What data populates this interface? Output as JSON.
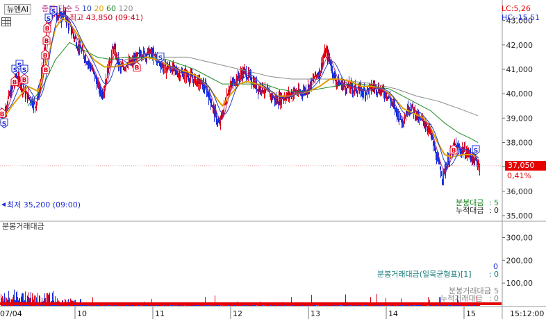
{
  "header": {
    "tab_label": "뉴엔AI",
    "legend_prefix": "종가 단순",
    "ma_periods": [
      "5",
      "10",
      "20",
      "60",
      "120"
    ],
    "max_label": "최고 43,850 (09:41)",
    "min_label": "최저 35,200 (09:00)",
    "lc": "LC:5,26",
    "hc": "HC:-15,51"
  },
  "current": {
    "price": "37,050",
    "change": "0,41%"
  },
  "price_panel": {
    "flow_label": "분봉대금",
    "flow_value": "5",
    "cum_label": "누적대금",
    "cum_value": "0"
  },
  "volume_panel": {
    "title": "분봉거래대금",
    "legend1_label": "분봉거래대금(일목균형표)[1]",
    "legend1_v1": "0",
    "legend1_v2": "0",
    "legend2_label": "분봉거래대금",
    "legend2_value": "5",
    "legend3_label": "누적거래대금",
    "legend3_value": "0"
  },
  "x_axis": {
    "first": "07/04",
    "last_time": "15:12:00"
  },
  "colors": {
    "up": "#e0001b",
    "down": "#1c2bd6",
    "ma5": "#b0367a",
    "ma10": "#2340c8",
    "ma20": "#e1a000",
    "ma60": "#218a28",
    "ma120": "#8c8c8c",
    "accent_red": "#e60000"
  },
  "chart_data": {
    "type": "candlestick",
    "price_axis": {
      "ticks": [
        "43,000",
        "42,000",
        "41,000",
        "40,000",
        "39,000",
        "38,000",
        "37,000",
        "36,000",
        "35,000"
      ],
      "ylim": [
        34800,
        43700
      ]
    },
    "volume_axis": {
      "ticks": [
        "300,00",
        "200,00",
        "100,00"
      ],
      "ylim": [
        0,
        350
      ]
    },
    "days": [
      "10",
      "11",
      "12",
      "13",
      "14",
      "15"
    ],
    "price_path": [
      [
        0,
        39300
      ],
      [
        5,
        39100
      ],
      [
        10,
        39700
      ],
      [
        17,
        40200
      ],
      [
        22,
        40700
      ],
      [
        28,
        40500
      ],
      [
        35,
        40000
      ],
      [
        43,
        39800
      ],
      [
        50,
        39500
      ],
      [
        57,
        40300
      ],
      [
        63,
        41600
      ],
      [
        66,
        42600
      ],
      [
        70,
        43000
      ],
      [
        75,
        43400
      ],
      [
        81,
        43300
      ],
      [
        87,
        43100
      ],
      [
        92,
        43300
      ],
      [
        97,
        42900
      ],
      [
        102,
        42600
      ],
      [
        108,
        42200
      ],
      [
        113,
        41900
      ],
      [
        118,
        41700
      ],
      [
        124,
        41400
      ],
      [
        130,
        41100
      ],
      [
        136,
        40700
      ],
      [
        142,
        40200
      ],
      [
        147,
        40000
      ],
      [
        151,
        40500
      ],
      [
        157,
        41300
      ],
      [
        163,
        41900
      ],
      [
        168,
        41400
      ],
      [
        173,
        41000
      ],
      [
        178,
        41100
      ],
      [
        183,
        41300
      ],
      [
        188,
        41200
      ],
      [
        193,
        41400
      ],
      [
        198,
        41500
      ],
      [
        203,
        41700
      ],
      [
        208,
        41600
      ],
      [
        213,
        41700
      ],
      [
        218,
        41600
      ],
      [
        224,
        41500
      ],
      [
        230,
        41300
      ],
      [
        236,
        41000
      ],
      [
        242,
        41100
      ],
      [
        248,
        41000
      ],
      [
        254,
        40900
      ],
      [
        260,
        40800
      ],
      [
        266,
        40800
      ],
      [
        272,
        40700
      ],
      [
        278,
        40600
      ],
      [
        284,
        40500
      ],
      [
        290,
        40400
      ],
      [
        296,
        40200
      ],
      [
        302,
        39800
      ],
      [
        307,
        39300
      ],
      [
        311,
        39000
      ],
      [
        315,
        38700
      ],
      [
        318,
        39000
      ],
      [
        323,
        39600
      ],
      [
        328,
        40200
      ],
      [
        334,
        40400
      ],
      [
        339,
        40600
      ],
      [
        344,
        40700
      ],
      [
        350,
        40900
      ],
      [
        355,
        40800
      ],
      [
        361,
        40600
      ],
      [
        366,
        40400
      ],
      [
        371,
        40200
      ],
      [
        376,
        40300
      ],
      [
        381,
        40100
      ],
      [
        386,
        40000
      ],
      [
        392,
        39900
      ],
      [
        397,
        39700
      ],
      [
        403,
        39800
      ],
      [
        408,
        39900
      ],
      [
        414,
        39900
      ],
      [
        419,
        40000
      ],
      [
        424,
        40100
      ],
      [
        430,
        40000
      ],
      [
        435,
        40100
      ],
      [
        441,
        40200
      ],
      [
        447,
        40400
      ],
      [
        453,
        40700
      ],
      [
        460,
        40900
      ],
      [
        465,
        41500
      ],
      [
        469,
        41700
      ],
      [
        474,
        41400
      ],
      [
        479,
        40800
      ],
      [
        484,
        40500
      ],
      [
        490,
        40400
      ],
      [
        496,
        40300
      ],
      [
        502,
        40300
      ],
      [
        508,
        40200
      ],
      [
        514,
        40200
      ],
      [
        520,
        40100
      ],
      [
        526,
        40100
      ],
      [
        532,
        40200
      ],
      [
        538,
        40300
      ],
      [
        544,
        40200
      ],
      [
        550,
        40100
      ],
      [
        556,
        40000
      ],
      [
        562,
        39700
      ],
      [
        568,
        39400
      ],
      [
        573,
        39100
      ],
      [
        578,
        38900
      ],
      [
        583,
        39100
      ],
      [
        588,
        39500
      ],
      [
        593,
        39400
      ],
      [
        598,
        39200
      ],
      [
        603,
        38900
      ],
      [
        608,
        38900
      ],
      [
        614,
        38700
      ],
      [
        619,
        38400
      ],
      [
        624,
        37800
      ],
      [
        629,
        37300
      ],
      [
        633,
        36900
      ],
      [
        637,
        36600
      ],
      [
        640,
        36900
      ],
      [
        645,
        37300
      ],
      [
        650,
        37600
      ],
      [
        655,
        37900
      ],
      [
        660,
        37700
      ],
      [
        665,
        37700
      ],
      [
        670,
        37600
      ],
      [
        676,
        37500
      ],
      [
        681,
        37300
      ],
      [
        686,
        37200
      ],
      [
        690,
        37050
      ]
    ],
    "ma_lines": {
      "ma20": [
        [
          0,
          38800
        ],
        [
          20,
          39600
        ],
        [
          40,
          40300
        ],
        [
          55,
          40100
        ],
        [
          64,
          40900
        ],
        [
          72,
          41800
        ],
        [
          80,
          42700
        ],
        [
          90,
          43100
        ],
        [
          100,
          42900
        ],
        [
          110,
          42500
        ],
        [
          120,
          42000
        ],
        [
          135,
          41400
        ],
        [
          150,
          41100
        ],
        [
          165,
          41100
        ],
        [
          180,
          41200
        ],
        [
          195,
          41300
        ],
        [
          210,
          41500
        ],
        [
          225,
          41400
        ],
        [
          240,
          41200
        ],
        [
          255,
          41000
        ],
        [
          270,
          40900
        ],
        [
          285,
          40700
        ],
        [
          300,
          40300
        ],
        [
          312,
          39800
        ],
        [
          320,
          39500
        ],
        [
          330,
          39900
        ],
        [
          345,
          40400
        ],
        [
          355,
          40500
        ],
        [
          370,
          40400
        ],
        [
          385,
          40200
        ],
        [
          400,
          39900
        ],
        [
          415,
          39900
        ],
        [
          430,
          40000
        ],
        [
          445,
          40100
        ],
        [
          460,
          40300
        ],
        [
          475,
          40600
        ],
        [
          490,
          40600
        ],
        [
          505,
          40500
        ],
        [
          520,
          40300
        ],
        [
          535,
          40300
        ],
        [
          550,
          40200
        ],
        [
          565,
          39900
        ],
        [
          580,
          39400
        ],
        [
          595,
          39200
        ],
        [
          610,
          39000
        ],
        [
          620,
          38600
        ],
        [
          630,
          38000
        ],
        [
          640,
          37500
        ],
        [
          650,
          37400
        ],
        [
          665,
          37500
        ],
        [
          680,
          37500
        ],
        [
          688,
          37400
        ]
      ],
      "ma60": [
        [
          40,
          39500
        ],
        [
          60,
          40200
        ],
        [
          80,
          41400
        ],
        [
          100,
          42100
        ],
        [
          120,
          41800
        ],
        [
          140,
          41500
        ],
        [
          160,
          41400
        ],
        [
          180,
          41500
        ],
        [
          200,
          41500
        ],
        [
          220,
          41500
        ],
        [
          240,
          41400
        ],
        [
          260,
          41200
        ],
        [
          280,
          41000
        ],
        [
          300,
          40700
        ],
        [
          320,
          40400
        ],
        [
          340,
          40400
        ],
        [
          360,
          40400
        ],
        [
          380,
          40400
        ],
        [
          400,
          40200
        ],
        [
          420,
          40100
        ],
        [
          440,
          40100
        ],
        [
          460,
          40200
        ],
        [
          480,
          40300
        ],
        [
          500,
          40400
        ],
        [
          520,
          40400
        ],
        [
          540,
          40300
        ],
        [
          560,
          40200
        ],
        [
          580,
          39900
        ],
        [
          600,
          39600
        ],
        [
          620,
          39300
        ],
        [
          640,
          38800
        ],
        [
          660,
          38400
        ],
        [
          675,
          38200
        ],
        [
          688,
          38000
        ]
      ],
      "ma120": [
        [
          180,
          41400
        ],
        [
          210,
          41500
        ],
        [
          240,
          41500
        ],
        [
          270,
          41500
        ],
        [
          300,
          41300
        ],
        [
          330,
          41100
        ],
        [
          360,
          40900
        ],
        [
          390,
          40700
        ],
        [
          420,
          40600
        ],
        [
          450,
          40600
        ],
        [
          480,
          40600
        ],
        [
          510,
          40500
        ],
        [
          540,
          40400
        ],
        [
          570,
          40200
        ],
        [
          600,
          39900
        ],
        [
          630,
          39700
        ],
        [
          660,
          39400
        ],
        [
          688,
          39100
        ]
      ]
    },
    "signals": [
      {
        "t": "S",
        "x": 6,
        "p": 38800
      },
      {
        "t": "B",
        "x": 3,
        "p": 39200
      },
      {
        "t": "S",
        "x": 22,
        "p": 41000
      },
      {
        "t": "S",
        "x": 28,
        "p": 41200
      },
      {
        "t": "B",
        "x": 21,
        "p": 40500
      },
      {
        "t": "B",
        "x": 35,
        "p": 40600
      },
      {
        "t": "S",
        "x": 35,
        "p": 41000
      },
      {
        "t": "S",
        "x": 77,
        "p": 43400
      },
      {
        "t": "S",
        "x": 70,
        "p": 43100
      },
      {
        "t": "B",
        "x": 67,
        "p": 42200
      },
      {
        "t": "B",
        "x": 65,
        "p": 41600
      },
      {
        "t": "B",
        "x": 68,
        "p": 42700
      },
      {
        "t": "B",
        "x": 66,
        "p": 41000
      },
      {
        "t": "B",
        "x": 197,
        "p": 41100
      },
      {
        "t": "S",
        "x": 231,
        "p": 41500
      },
      {
        "t": "B",
        "x": 653,
        "p": 37700
      },
      {
        "t": "S",
        "x": 685,
        "p": 37700
      }
    ]
  }
}
